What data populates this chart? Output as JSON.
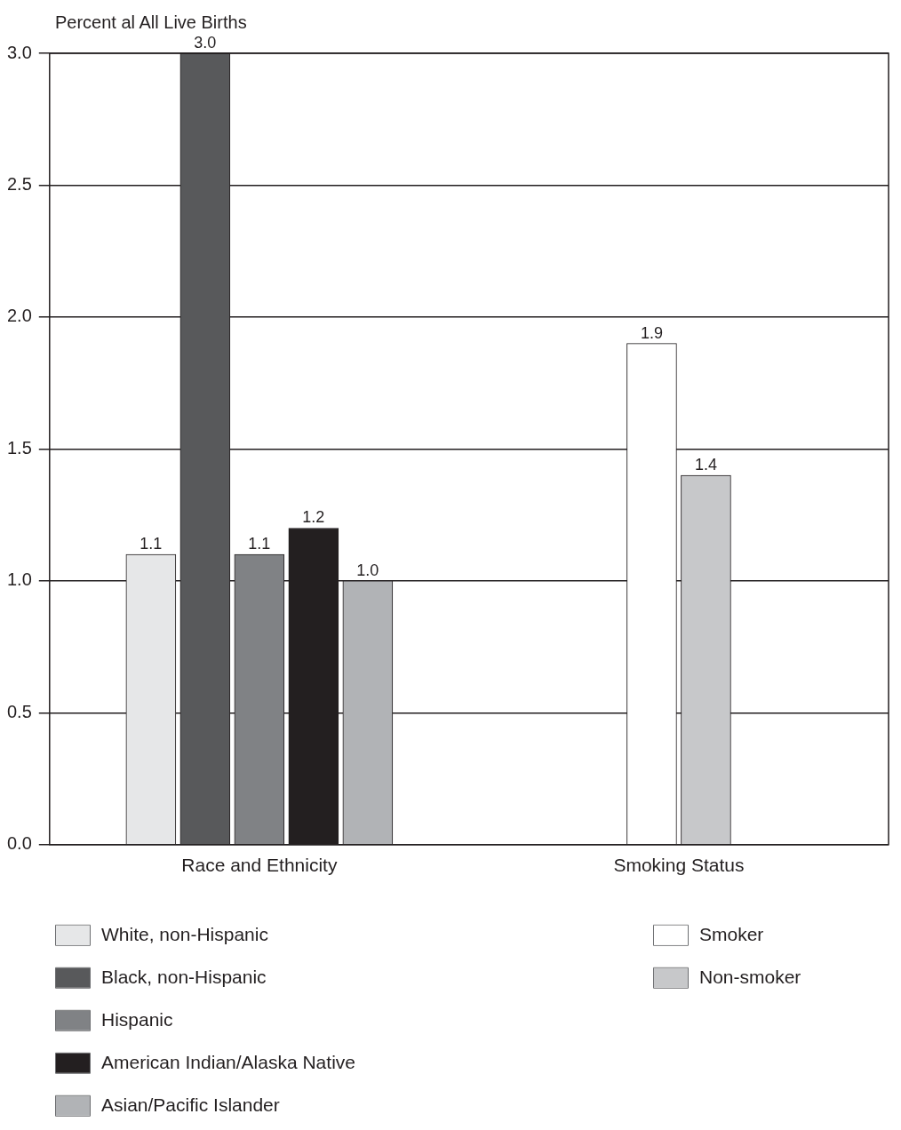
{
  "chart_data": {
    "type": "bar",
    "ylabel": "Percent al All Live Births",
    "categories": [
      "Race and Ethnicity",
      "Smoking Status"
    ],
    "series": [
      {
        "name": "White, non-Hispanic",
        "color": "#e6e7e8",
        "values": [
          1.1,
          null
        ],
        "value_labels": [
          "1.1",
          null
        ]
      },
      {
        "name": "Black, non-Hispanic",
        "color": "#58595b",
        "values": [
          3.0,
          null
        ],
        "value_labels": [
          "3.0",
          null
        ]
      },
      {
        "name": "Hispanic",
        "color": "#808285",
        "values": [
          1.1,
          null
        ],
        "value_labels": [
          "1.1",
          null
        ]
      },
      {
        "name": "American Indian/Alaska Native",
        "color": "#231f20",
        "values": [
          1.2,
          null
        ],
        "value_labels": [
          "1.2",
          null
        ]
      },
      {
        "name": "Asian/Pacific Islander",
        "color": "#b1b3b6",
        "values": [
          1.0,
          null
        ],
        "value_labels": [
          "1.0",
          null
        ]
      },
      {
        "name": "Smoker",
        "color": "#ffffff",
        "values": [
          null,
          1.9
        ],
        "value_labels": [
          null,
          "1.9"
        ]
      },
      {
        "name": "Non-smoker",
        "color": "#c7c8ca",
        "values": [
          null,
          1.4
        ],
        "value_labels": [
          null,
          "1.4"
        ]
      }
    ],
    "ylim": [
      0,
      3
    ],
    "yticks": [
      {
        "value": 0,
        "label": "0.0"
      },
      {
        "value": 0.5,
        "label": "0.5"
      },
      {
        "value": 1,
        "label": "1.0"
      },
      {
        "value": 1.5,
        "label": "1.5"
      },
      {
        "value": 2,
        "label": "2.0"
      },
      {
        "value": 2.5,
        "label": "2.5"
      },
      {
        "value": 3,
        "label": "3.0"
      }
    ],
    "grid": "y",
    "legend": "bottom"
  }
}
